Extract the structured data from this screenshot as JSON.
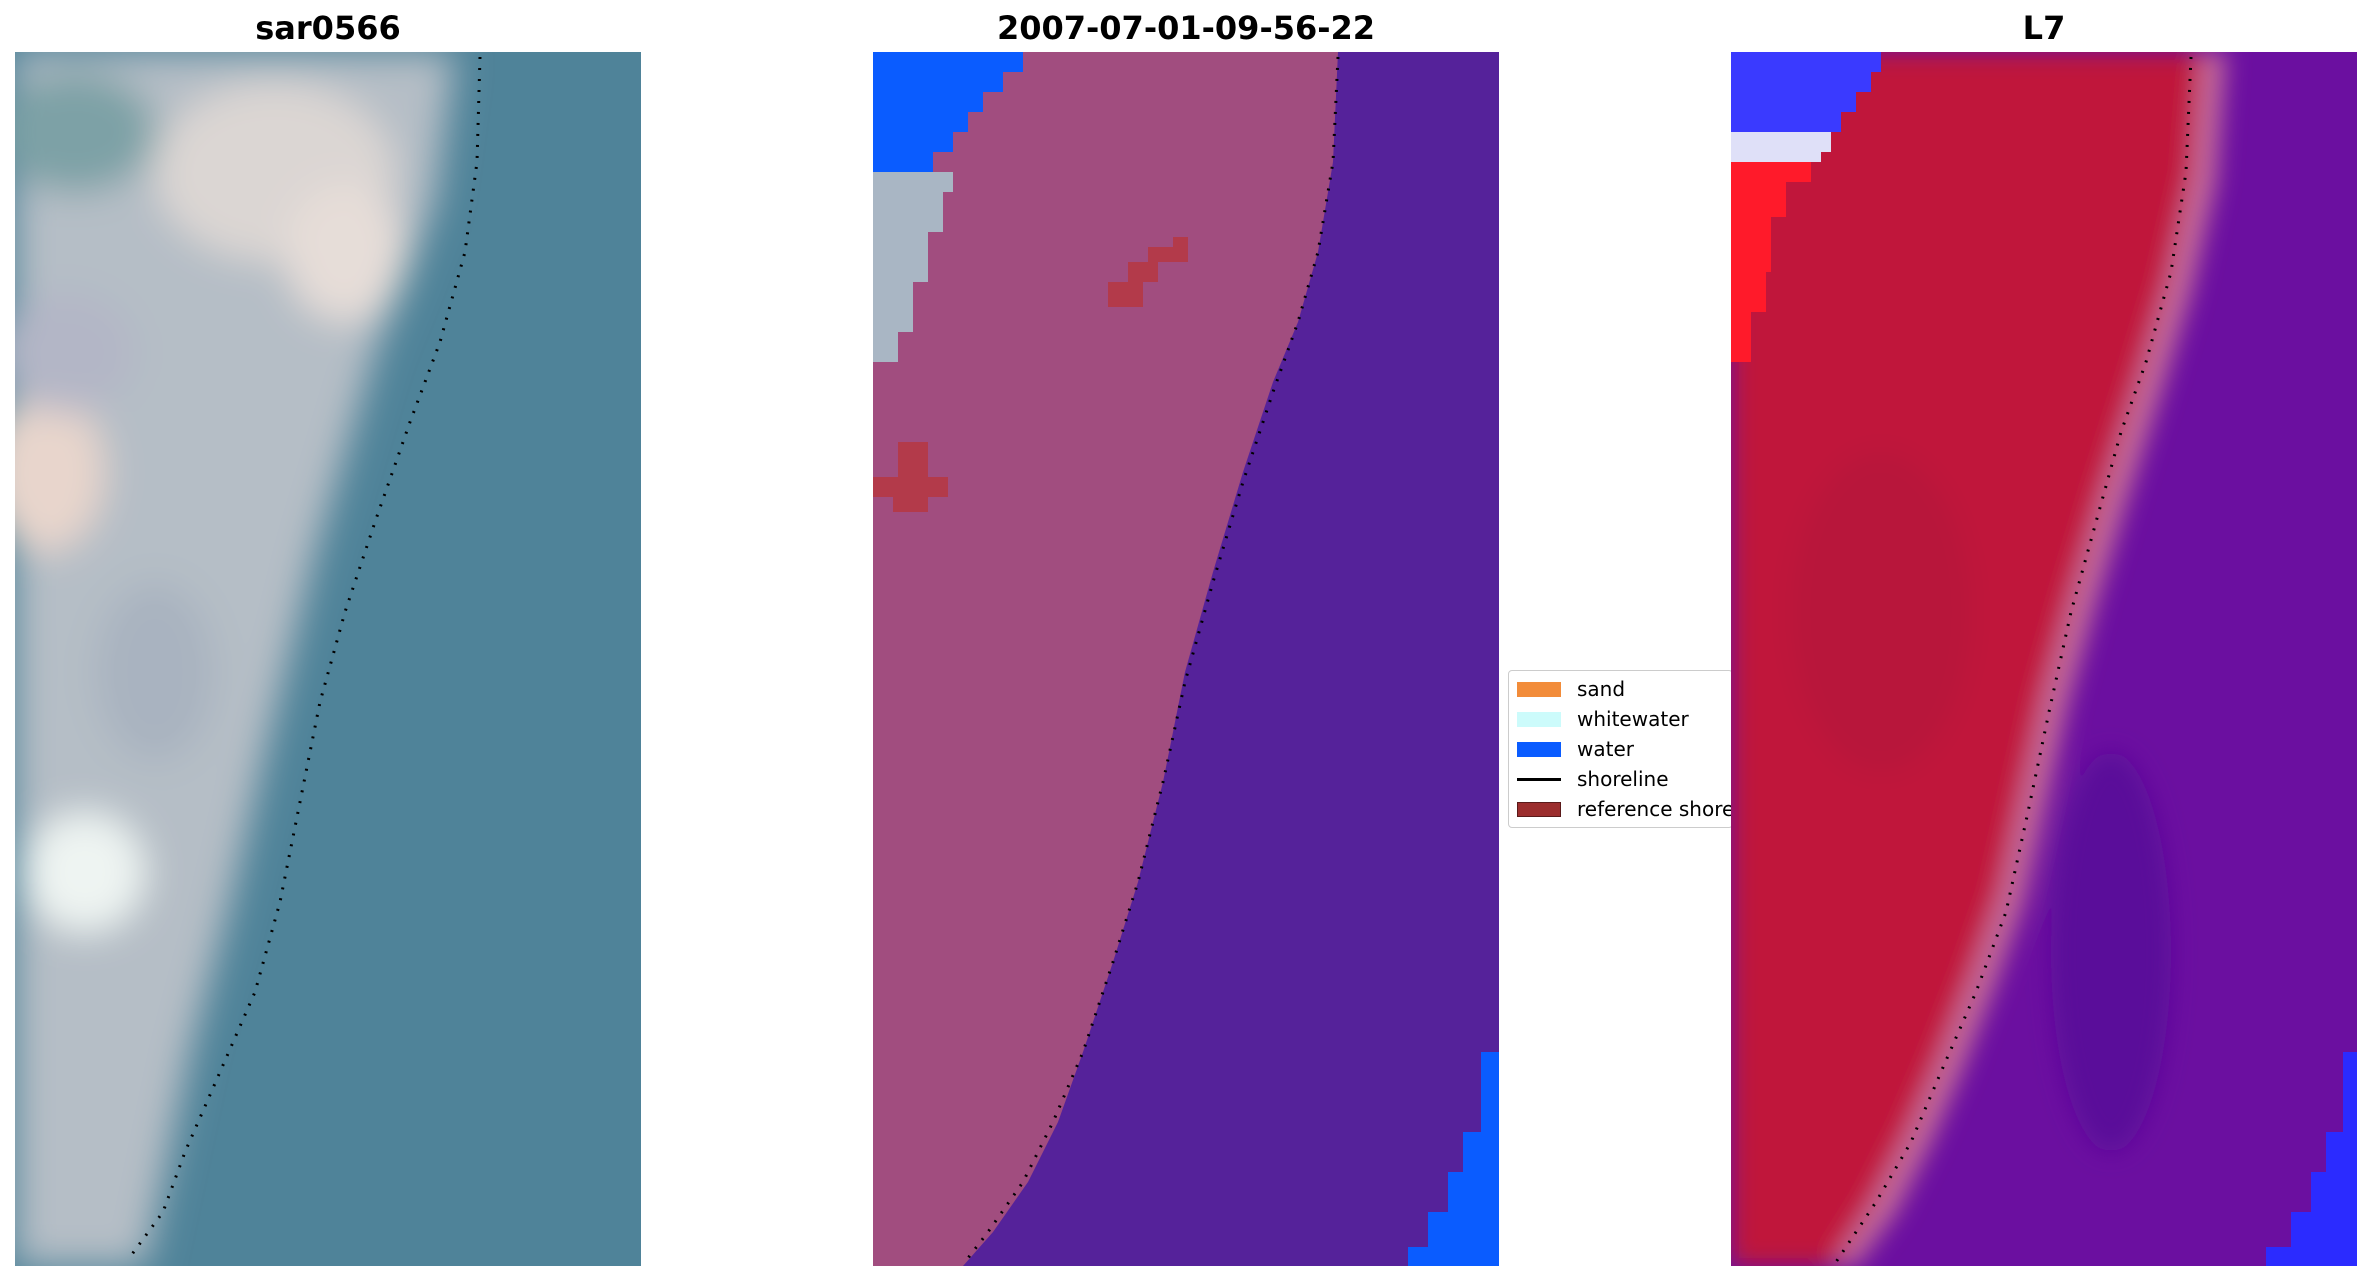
{
  "panels": {
    "rgb": {
      "title": "sar0566"
    },
    "classification": {
      "title": "2007-07-01-09-56-22"
    },
    "mndwi": {
      "title": "L7"
    }
  },
  "legend": {
    "items": [
      {
        "label": "sand",
        "color": "#f28c3a",
        "kind": "patch"
      },
      {
        "label": "whitewater",
        "color": "#ccfbfb",
        "kind": "patch"
      },
      {
        "label": "water",
        "color": "#0a5cff",
        "kind": "patch"
      },
      {
        "label": "shoreline",
        "color": "#000000",
        "kind": "line"
      },
      {
        "label": "reference shoreline",
        "color": "#9b2d2d",
        "kind": "patch"
      }
    ]
  },
  "colors": {
    "rgb_water": "#4f8399",
    "rgb_land": "#b7c0c8",
    "class_land": "#a14d7f",
    "class_water": "#55229a",
    "class_water_blue": "#0a5cff",
    "class_reference": "#b33a4a",
    "mndwi_land": "#c0123a",
    "mndwi_water": "#6b0fa0",
    "mndwi_blue": "#2b2bff"
  }
}
